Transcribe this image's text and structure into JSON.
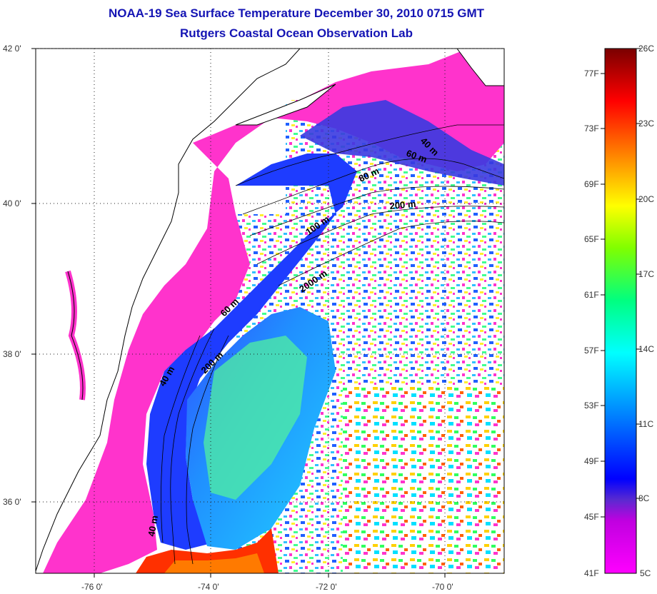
{
  "title": {
    "line1": "NOAA-19 Sea Surface Temperature December 30, 2010 0715 GMT",
    "line2": "Rutgers Coastal Ocean Observation Lab"
  },
  "axes": {
    "lat_labels": [
      "42 0'",
      "40 0'",
      "38 0'",
      "36 0'"
    ],
    "lon_labels": [
      "-76 0'",
      "-74 0'",
      "-72 0'",
      "-70 0'"
    ]
  },
  "contour_labels": [
    "40 m",
    "60 m",
    "80 m",
    "200 m",
    "100 m",
    "2000 m",
    "60 m",
    "200 m",
    "40 m",
    "40 m"
  ],
  "colorbar": {
    "fahrenheit_labels": [
      "77F",
      "73F",
      "69F",
      "65F",
      "61F",
      "57F",
      "53F",
      "49F",
      "45F",
      "41F"
    ],
    "celsius_labels": [
      "26C",
      "23C",
      "20C",
      "17C",
      "14C",
      "11C",
      "8C",
      "5C"
    ],
    "colors": [
      "#ff00ff",
      "#8a2be2",
      "#0000ff",
      "#00ffff",
      "#00ff00",
      "#ffff00",
      "#ff8000",
      "#ff0000",
      "#7a0000"
    ]
  },
  "colors": {
    "land": "#ffffff",
    "cold_shelf": "#ff33cc",
    "title": "#1414b4"
  }
}
